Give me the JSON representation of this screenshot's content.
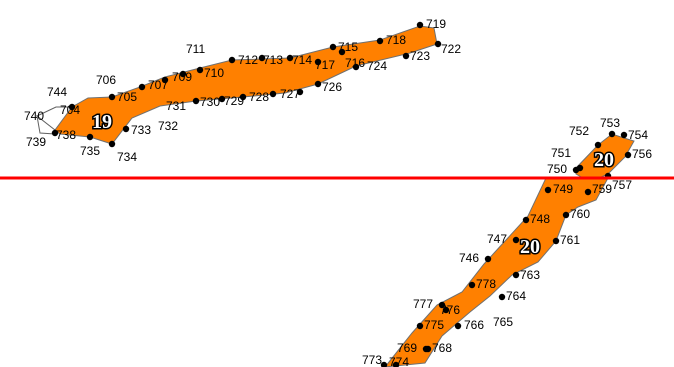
{
  "colors": {
    "fill": "#ff8000",
    "outline": "#707070",
    "vertex": "#000000",
    "cut_line": "#ff0000",
    "aux_line": "#606060",
    "background": "#ffffff"
  },
  "regions": [
    {
      "id": "region-19",
      "label": "19"
    },
    {
      "id": "region-20-top",
      "label": "20"
    },
    {
      "id": "region-20-bottom",
      "label": "20"
    }
  ],
  "point_labels": [
    "719",
    "718",
    "722",
    "723",
    "715",
    "716",
    "724",
    "717",
    "711",
    "712",
    "713",
    "714",
    "710",
    "709",
    "707",
    "706",
    "705",
    "726",
    "727",
    "728",
    "729",
    "730",
    "731",
    "732",
    "733",
    "744",
    "704",
    "740",
    "739",
    "738",
    "735",
    "734",
    "753",
    "754",
    "752",
    "756",
    "751",
    "750",
    "757",
    "749",
    "759",
    "760",
    "748",
    "747",
    "761",
    "746",
    "763",
    "778",
    "764",
    "777",
    "776",
    "775",
    "766",
    "765",
    "769",
    "768",
    "773",
    "774"
  ]
}
